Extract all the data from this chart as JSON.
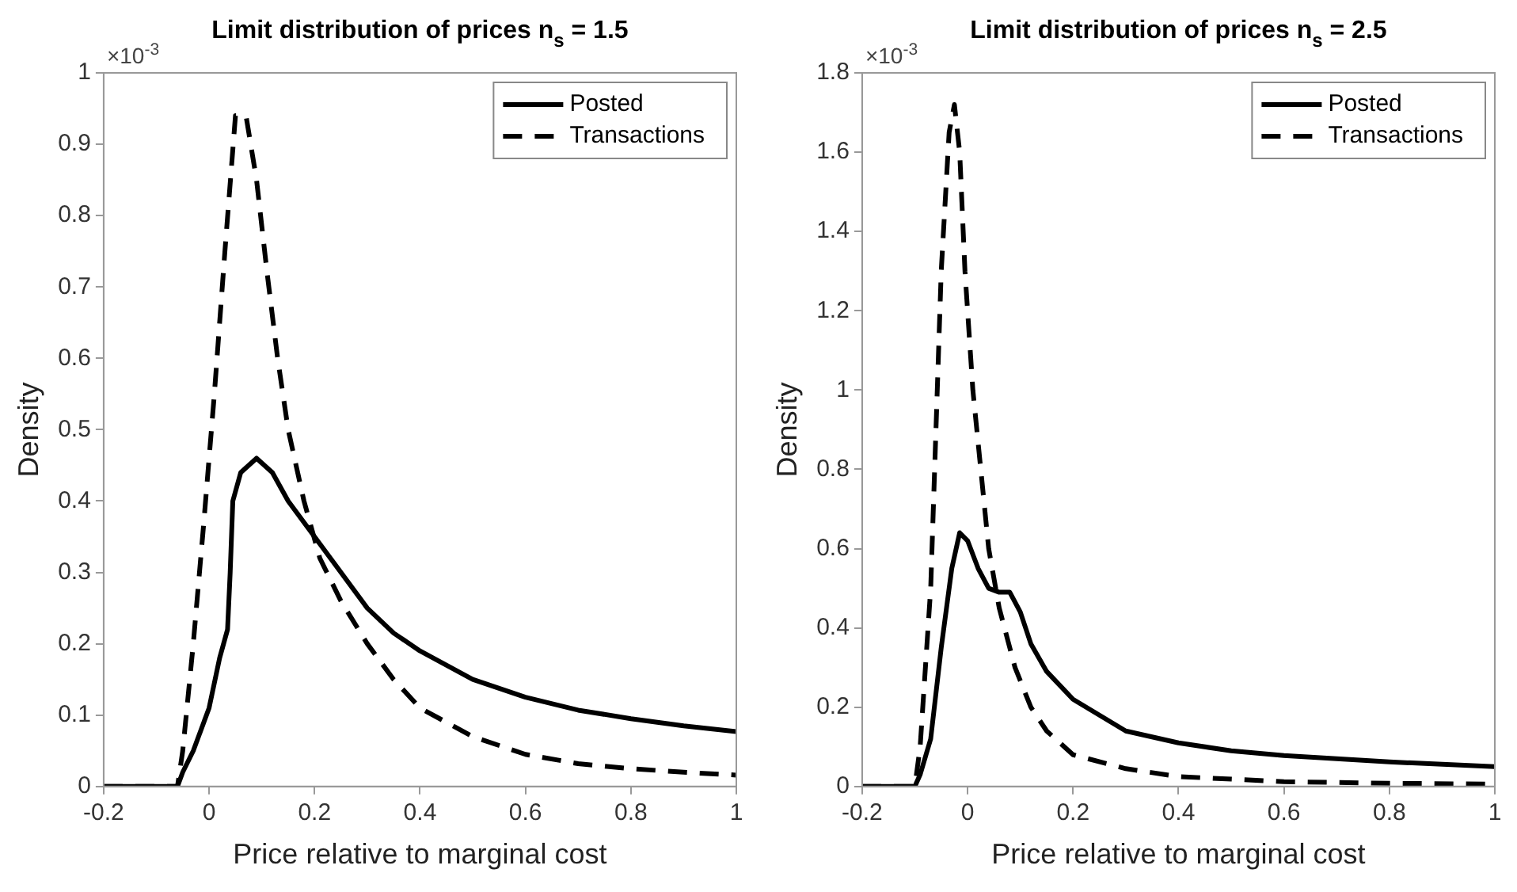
{
  "chart_data": [
    {
      "type": "line",
      "title": "Limit distribution of prices n$_{s}$ = 1.5",
      "xlabel": "Price relative to marginal cost",
      "ylabel": "Density",
      "annotations": [
        "×10$^{-3}$"
      ],
      "xlim": [
        -0.2,
        1
      ],
      "xticks": [
        -0.2,
        0,
        0.2,
        0.4,
        0.6,
        0.8,
        1
      ],
      "ylim": [
        0,
        1
      ],
      "yticks": [
        0,
        0.1,
        0.2,
        0.3,
        0.4,
        0.5,
        0.6,
        0.7,
        0.8,
        0.9,
        1
      ],
      "grid": false,
      "legend": "top right",
      "series": [
        {
          "name": "Posted",
          "color": "#000000",
          "line_style": "solid",
          "x": [
            -0.2,
            -0.06,
            -0.05,
            -0.03,
            0,
            0.02,
            0.035,
            0.04,
            0.045,
            0.06,
            0.09,
            0.12,
            0.15,
            0.2,
            0.25,
            0.3,
            0.35,
            0.4,
            0.5,
            0.6,
            0.7,
            0.8,
            0.9,
            1
          ],
          "values": [
            0,
            0,
            0.02,
            0.05,
            0.11,
            0.18,
            0.22,
            0.3,
            0.4,
            0.44,
            0.46,
            0.44,
            0.4,
            0.35,
            0.3,
            0.25,
            0.215,
            0.19,
            0.15,
            0.125,
            0.107,
            0.095,
            0.085,
            0.077
          ]
        },
        {
          "name": "Transactions",
          "color": "#000000",
          "line_style": "dashed",
          "x": [
            -0.2,
            -0.06,
            -0.05,
            -0.03,
            -0.01,
            0.01,
            0.03,
            0.05,
            0.07,
            0.09,
            0.11,
            0.13,
            0.15,
            0.18,
            0.21,
            0.25,
            0.3,
            0.35,
            0.4,
            0.5,
            0.6,
            0.7,
            0.8,
            0.9,
            1
          ],
          "values": [
            0,
            0,
            0.05,
            0.2,
            0.37,
            0.55,
            0.75,
            0.94,
            0.94,
            0.85,
            0.72,
            0.6,
            0.5,
            0.4,
            0.32,
            0.26,
            0.2,
            0.15,
            0.11,
            0.07,
            0.045,
            0.032,
            0.025,
            0.02,
            0.016
          ]
        }
      ]
    },
    {
      "type": "line",
      "title": "Limit distribution of prices n$_{s}$ = 2.5",
      "xlabel": "Price relative to marginal cost",
      "ylabel": "Density",
      "annotations": [
        "×10$^{-3}$"
      ],
      "xlim": [
        -0.2,
        1
      ],
      "xticks": [
        -0.2,
        0,
        0.2,
        0.4,
        0.6,
        0.8,
        1
      ],
      "ylim": [
        0,
        1.8
      ],
      "yticks": [
        0,
        0.2,
        0.4,
        0.6,
        0.8,
        1,
        1.2,
        1.4,
        1.6,
        1.8
      ],
      "grid": false,
      "legend": "top right",
      "series": [
        {
          "name": "Posted",
          "color": "#000000",
          "line_style": "solid",
          "x": [
            -0.2,
            -0.1,
            -0.09,
            -0.07,
            -0.05,
            -0.03,
            -0.015,
            0,
            0.02,
            0.04,
            0.06,
            0.08,
            0.1,
            0.12,
            0.15,
            0.2,
            0.3,
            0.4,
            0.5,
            0.6,
            0.8,
            1
          ],
          "values": [
            0,
            0,
            0.03,
            0.12,
            0.35,
            0.55,
            0.64,
            0.62,
            0.55,
            0.5,
            0.49,
            0.49,
            0.44,
            0.36,
            0.29,
            0.22,
            0.14,
            0.11,
            0.09,
            0.078,
            0.062,
            0.05
          ]
        },
        {
          "name": "Transactions",
          "color": "#000000",
          "line_style": "dashed",
          "x": [
            -0.2,
            -0.1,
            -0.09,
            -0.07,
            -0.06,
            -0.05,
            -0.035,
            -0.025,
            -0.015,
            -0.005,
            0.01,
            0.025,
            0.04,
            0.06,
            0.09,
            0.12,
            0.15,
            0.2,
            0.3,
            0.4,
            0.6,
            0.8,
            1
          ],
          "values": [
            0,
            0,
            0.1,
            0.5,
            0.9,
            1.3,
            1.65,
            1.72,
            1.6,
            1.3,
            1.0,
            0.8,
            0.6,
            0.45,
            0.3,
            0.2,
            0.14,
            0.08,
            0.045,
            0.025,
            0.012,
            0.008,
            0.006
          ]
        }
      ]
    }
  ]
}
